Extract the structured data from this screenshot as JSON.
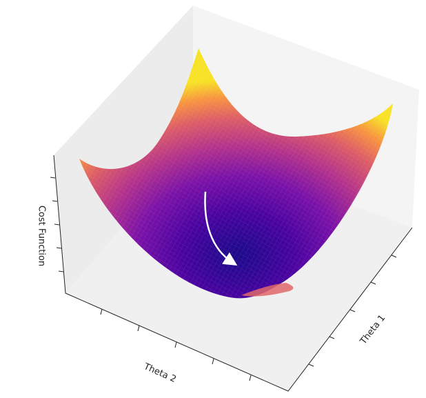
{
  "chart_data": {
    "type": "surface",
    "xlabel": "Theta 2",
    "ylabel": "Theta 1",
    "zlabel": "Cost Function"
  }
}
